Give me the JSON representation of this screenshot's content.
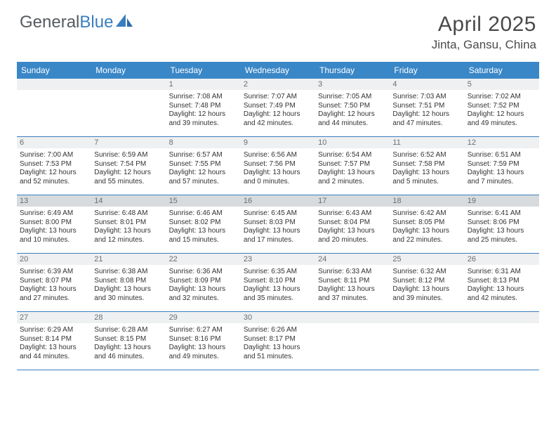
{
  "brand": {
    "part1": "General",
    "part2": "Blue"
  },
  "title": "April 2025",
  "location": "Jinta, Gansu, China",
  "weekdays": [
    "Sunday",
    "Monday",
    "Tuesday",
    "Wednesday",
    "Thursday",
    "Friday",
    "Saturday"
  ],
  "colors": {
    "header_bar": "#3a87c7",
    "accent": "#3a7ebf",
    "daynum_bg": "#eef0f1",
    "daynum_hl_bg": "#d7dbde",
    "text": "#333333"
  },
  "layout": {
    "columns": 7,
    "rows": 5,
    "blank_leading": 2,
    "blank_trailing": 3
  },
  "day_row_highlighted": [
    false,
    false,
    true,
    false,
    false
  ],
  "days": [
    {
      "n": "1",
      "sunrise": "7:08 AM",
      "sunset": "7:48 PM",
      "daylight": "12 hours and 39 minutes."
    },
    {
      "n": "2",
      "sunrise": "7:07 AM",
      "sunset": "7:49 PM",
      "daylight": "12 hours and 42 minutes."
    },
    {
      "n": "3",
      "sunrise": "7:05 AM",
      "sunset": "7:50 PM",
      "daylight": "12 hours and 44 minutes."
    },
    {
      "n": "4",
      "sunrise": "7:03 AM",
      "sunset": "7:51 PM",
      "daylight": "12 hours and 47 minutes."
    },
    {
      "n": "5",
      "sunrise": "7:02 AM",
      "sunset": "7:52 PM",
      "daylight": "12 hours and 49 minutes."
    },
    {
      "n": "6",
      "sunrise": "7:00 AM",
      "sunset": "7:53 PM",
      "daylight": "12 hours and 52 minutes."
    },
    {
      "n": "7",
      "sunrise": "6:59 AM",
      "sunset": "7:54 PM",
      "daylight": "12 hours and 55 minutes."
    },
    {
      "n": "8",
      "sunrise": "6:57 AM",
      "sunset": "7:55 PM",
      "daylight": "12 hours and 57 minutes."
    },
    {
      "n": "9",
      "sunrise": "6:56 AM",
      "sunset": "7:56 PM",
      "daylight": "13 hours and 0 minutes."
    },
    {
      "n": "10",
      "sunrise": "6:54 AM",
      "sunset": "7:57 PM",
      "daylight": "13 hours and 2 minutes."
    },
    {
      "n": "11",
      "sunrise": "6:52 AM",
      "sunset": "7:58 PM",
      "daylight": "13 hours and 5 minutes."
    },
    {
      "n": "12",
      "sunrise": "6:51 AM",
      "sunset": "7:59 PM",
      "daylight": "13 hours and 7 minutes."
    },
    {
      "n": "13",
      "sunrise": "6:49 AM",
      "sunset": "8:00 PM",
      "daylight": "13 hours and 10 minutes."
    },
    {
      "n": "14",
      "sunrise": "6:48 AM",
      "sunset": "8:01 PM",
      "daylight": "13 hours and 12 minutes."
    },
    {
      "n": "15",
      "sunrise": "6:46 AM",
      "sunset": "8:02 PM",
      "daylight": "13 hours and 15 minutes."
    },
    {
      "n": "16",
      "sunrise": "6:45 AM",
      "sunset": "8:03 PM",
      "daylight": "13 hours and 17 minutes."
    },
    {
      "n": "17",
      "sunrise": "6:43 AM",
      "sunset": "8:04 PM",
      "daylight": "13 hours and 20 minutes."
    },
    {
      "n": "18",
      "sunrise": "6:42 AM",
      "sunset": "8:05 PM",
      "daylight": "13 hours and 22 minutes."
    },
    {
      "n": "19",
      "sunrise": "6:41 AM",
      "sunset": "8:06 PM",
      "daylight": "13 hours and 25 minutes."
    },
    {
      "n": "20",
      "sunrise": "6:39 AM",
      "sunset": "8:07 PM",
      "daylight": "13 hours and 27 minutes."
    },
    {
      "n": "21",
      "sunrise": "6:38 AM",
      "sunset": "8:08 PM",
      "daylight": "13 hours and 30 minutes."
    },
    {
      "n": "22",
      "sunrise": "6:36 AM",
      "sunset": "8:09 PM",
      "daylight": "13 hours and 32 minutes."
    },
    {
      "n": "23",
      "sunrise": "6:35 AM",
      "sunset": "8:10 PM",
      "daylight": "13 hours and 35 minutes."
    },
    {
      "n": "24",
      "sunrise": "6:33 AM",
      "sunset": "8:11 PM",
      "daylight": "13 hours and 37 minutes."
    },
    {
      "n": "25",
      "sunrise": "6:32 AM",
      "sunset": "8:12 PM",
      "daylight": "13 hours and 39 minutes."
    },
    {
      "n": "26",
      "sunrise": "6:31 AM",
      "sunset": "8:13 PM",
      "daylight": "13 hours and 42 minutes."
    },
    {
      "n": "27",
      "sunrise": "6:29 AM",
      "sunset": "8:14 PM",
      "daylight": "13 hours and 44 minutes."
    },
    {
      "n": "28",
      "sunrise": "6:28 AM",
      "sunset": "8:15 PM",
      "daylight": "13 hours and 46 minutes."
    },
    {
      "n": "29",
      "sunrise": "6:27 AM",
      "sunset": "8:16 PM",
      "daylight": "13 hours and 49 minutes."
    },
    {
      "n": "30",
      "sunrise": "6:26 AM",
      "sunset": "8:17 PM",
      "daylight": "13 hours and 51 minutes."
    }
  ],
  "labels": {
    "sunrise": "Sunrise:",
    "sunset": "Sunset:",
    "daylight": "Daylight:"
  }
}
